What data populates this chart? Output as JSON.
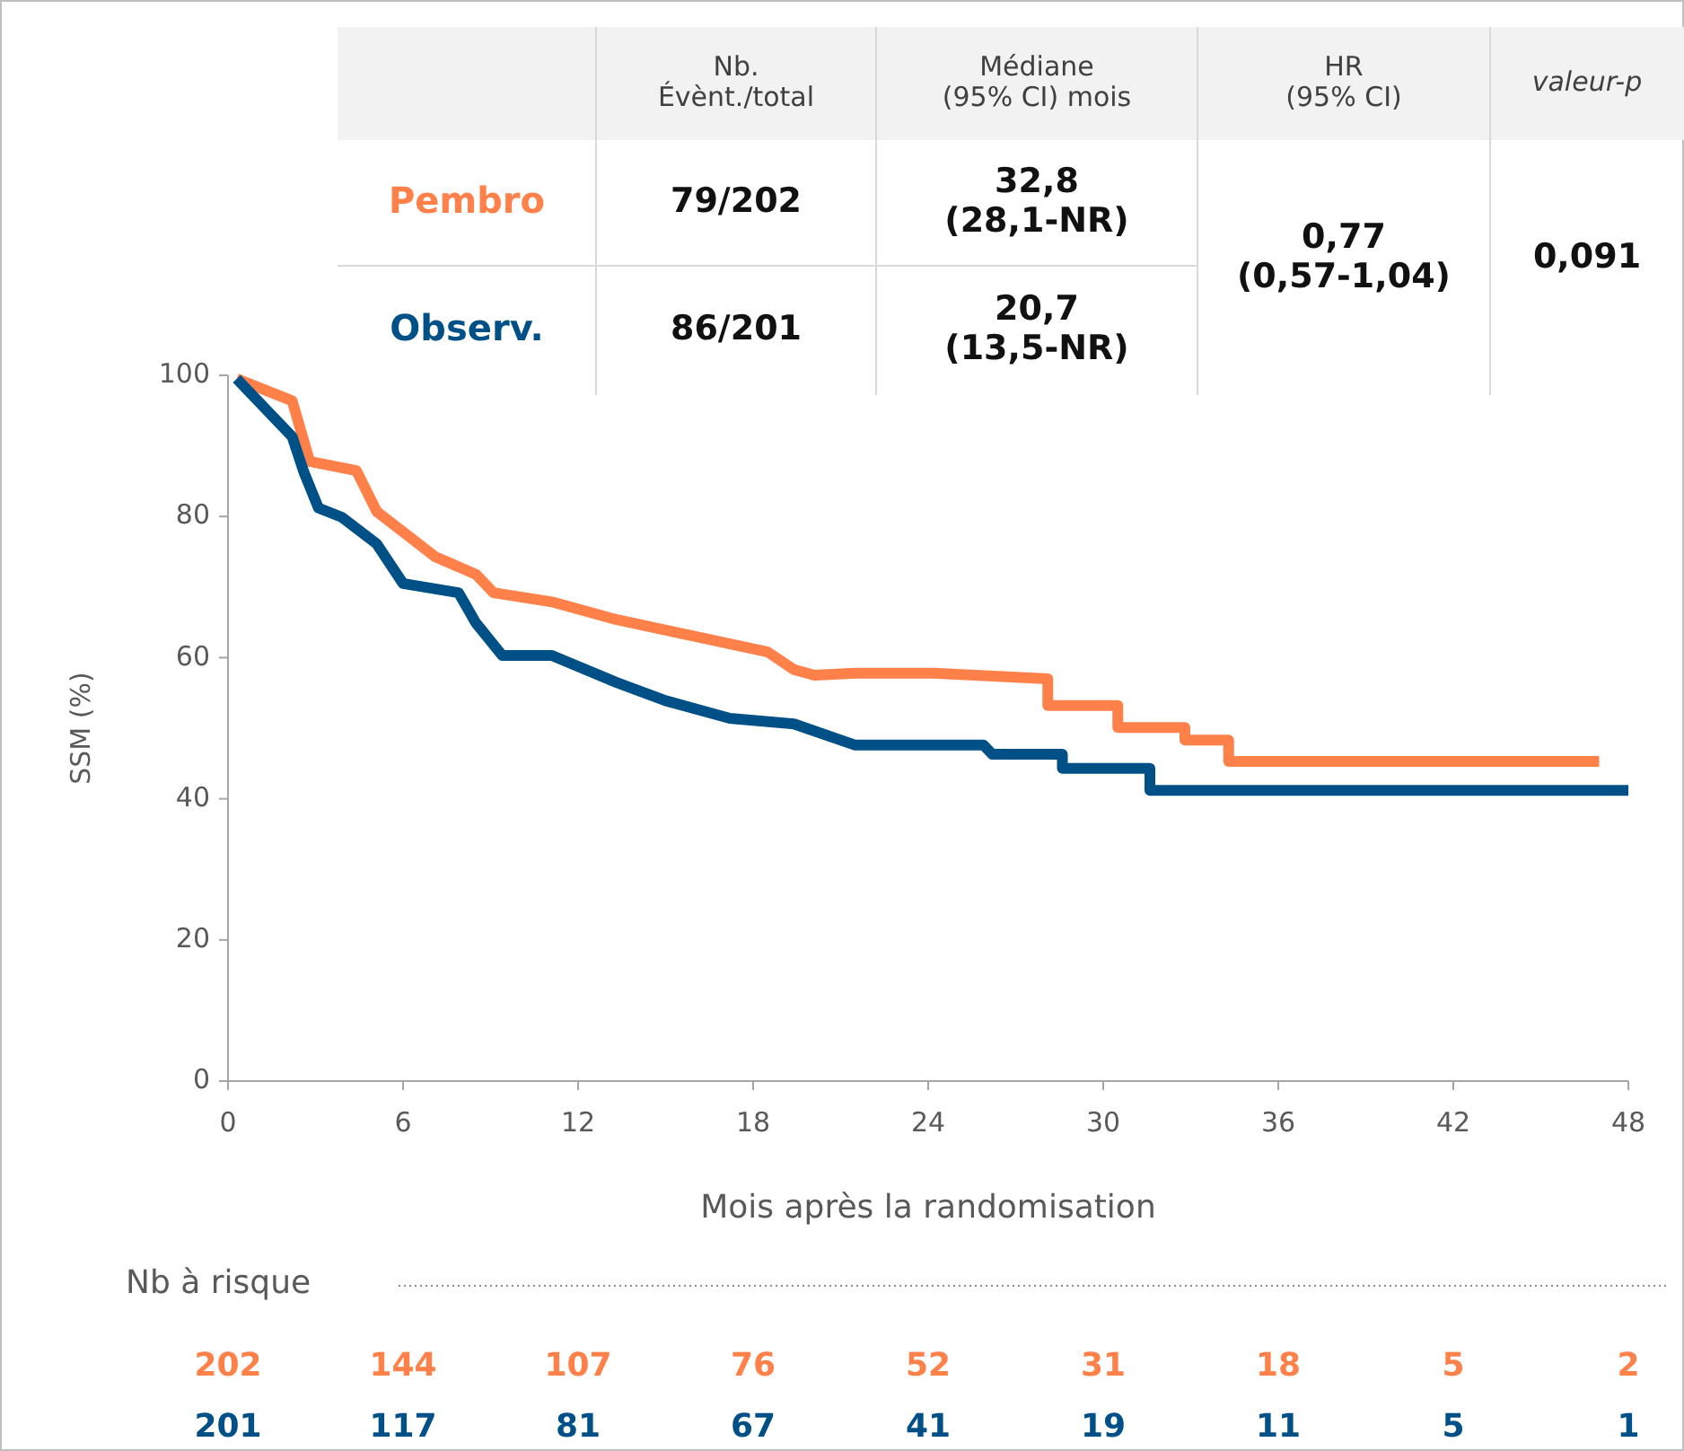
{
  "chart_data": {
    "type": "line",
    "xlabel": "Mois après la randomisation",
    "ylabel": "SSM (%)",
    "xlim": [
      0,
      48
    ],
    "xticks": [
      0,
      6,
      12,
      18,
      24,
      30,
      36,
      42,
      48
    ],
    "ylim": [
      0,
      100
    ],
    "yticks": [
      0,
      20,
      40,
      60,
      80,
      100
    ],
    "grid": false,
    "legend": "top",
    "marker": "none",
    "line_style": "solid",
    "series": [
      {
        "name": "Pembro",
        "color": "#ff8149",
        "x": [
          0.3,
          2.2,
          2.8,
          4.4,
          5.1,
          7.1,
          8.5,
          9.1,
          11.1,
          13.3,
          18.5,
          19.4,
          20.1,
          21.5,
          24.2,
          28.1,
          28.1,
          30.5,
          30.5,
          32.8,
          32.8,
          34.3,
          34.3,
          47
        ],
        "values": [
          99.5,
          96.4,
          87.8,
          86.5,
          80.7,
          74.3,
          71.8,
          69.2,
          67.9,
          65.4,
          60.8,
          58.3,
          57.5,
          57.8,
          57.8,
          57,
          53.2,
          53.2,
          50.1,
          50.1,
          48.3,
          48.3,
          45.3,
          45.3
        ]
      },
      {
        "name": "Observ.",
        "color": "#005088",
        "x": [
          0.3,
          2.2,
          2.6,
          3.1,
          3.9,
          5.1,
          6,
          7.9,
          8.5,
          9.4,
          11.1,
          13.3,
          15,
          17.2,
          19.4,
          21.5,
          25.9,
          26.2,
          28.6,
          28.6,
          31.6,
          31.6,
          48
        ],
        "values": [
          99.5,
          91.3,
          86.3,
          81.2,
          79.9,
          76.1,
          70.5,
          69.2,
          64.9,
          60.3,
          60.3,
          56.5,
          53.9,
          51.4,
          50.6,
          47.6,
          47.6,
          46.3,
          46.3,
          44.3,
          44.3,
          41.2,
          41.2
        ]
      }
    ],
    "annotations": [
      "Nb.\nÉvènt./total",
      "Médiane\n(95% CI) mois",
      "HR\n(95% CI)",
      "valeur-p",
      "79/202",
      "32,8\n(28,1-NR)",
      "0,77\n(0,57-1,04)",
      "0,091",
      "86/201",
      "20,7\n(13,5-NR)",
      "Nb à risque",
      "202",
      "144",
      "107",
      "76",
      "52",
      "31",
      "18",
      "5",
      "2",
      "201",
      "117",
      "81",
      "67",
      "41",
      "19",
      "11",
      "5",
      "1"
    ]
  }
}
